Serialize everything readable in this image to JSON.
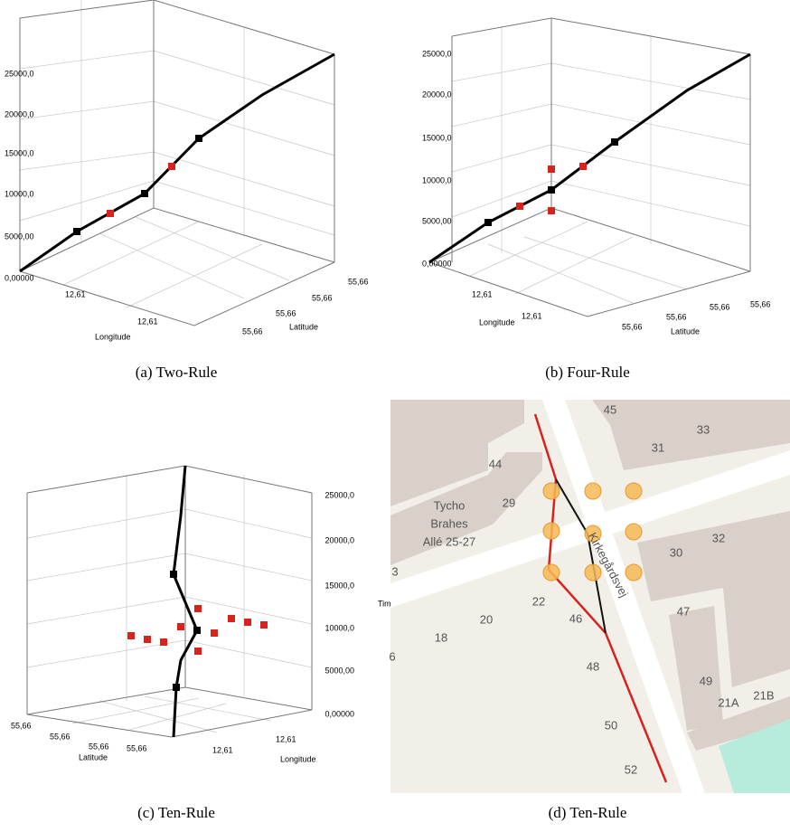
{
  "panels": [
    {
      "caption": "(a) Two-Rule",
      "z_ticks": [
        "0,00000",
        "5000,00",
        "10000,0",
        "15000,0",
        "20000,0",
        "25000,0"
      ],
      "x_label": "Longitude",
      "x_ticks": [
        "12,61",
        "12,61"
      ],
      "y_label": "Latitude",
      "y_ticks": [
        "55,66",
        "55,66",
        "55,66",
        "55,66"
      ]
    },
    {
      "caption": "(b) Four-Rule",
      "z_ticks": [
        "0,00000",
        "5000,00",
        "10000,0",
        "15000,0",
        "20000,0",
        "25000,0"
      ],
      "x_label": "Longitude",
      "x_ticks": [
        "12,61",
        "12,61"
      ],
      "y_label": "Latitude",
      "y_ticks": [
        "55,66",
        "55,66",
        "55,66",
        "55,66"
      ]
    },
    {
      "caption": "(c) Ten-Rule",
      "z_ticks": [
        "0,00000",
        "5000,00",
        "10000,0",
        "15000,0",
        "20000,0",
        "25000,0"
      ],
      "z_label": "Tim",
      "x_label": "Longitude",
      "x_ticks": [
        "12,61",
        "12,61"
      ],
      "y_label": "Latitude",
      "y_ticks": [
        "55,66",
        "55,66",
        "55,66",
        "55,66"
      ]
    }
  ],
  "map": {
    "caption": "(d) Ten-Rule",
    "street": "Kirkegårdsvej",
    "place": [
      "Tycho",
      "Brahes",
      "Allé 25-27"
    ],
    "numbers": [
      "45",
      "33",
      "31",
      "44",
      "29",
      "3",
      "32",
      "30",
      "22",
      "46",
      "20",
      "18",
      "6",
      "48",
      "47",
      "49",
      "21A",
      "21B",
      "50",
      "52"
    ]
  }
}
